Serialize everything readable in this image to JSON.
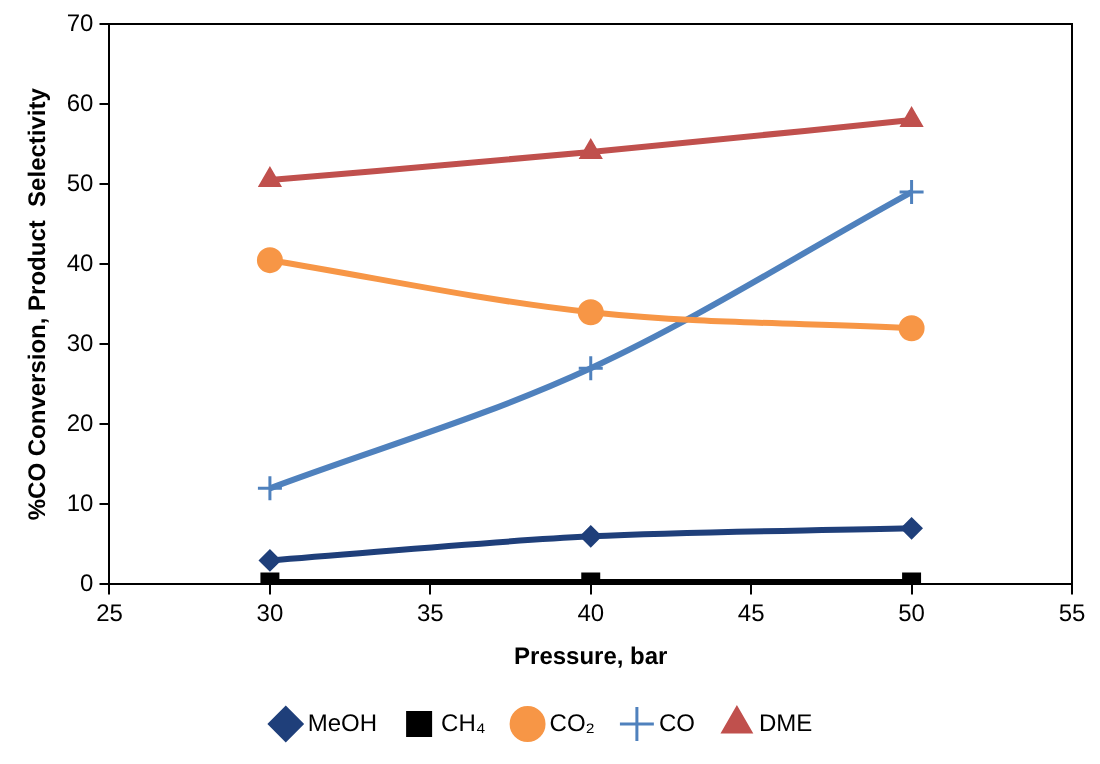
{
  "chart_data": {
    "type": "line",
    "xlabel": "Pressure, bar",
    "ylabel": "%CO Conversion, Product  Selectivity",
    "x": [
      30,
      40,
      50
    ],
    "xlim": [
      25,
      55
    ],
    "xticks": [
      25,
      30,
      35,
      40,
      45,
      50,
      55
    ],
    "ylim": [
      0,
      70
    ],
    "yticks": [
      0,
      10,
      20,
      30,
      40,
      50,
      60,
      70
    ],
    "grid": false,
    "legend": "bottom",
    "series": [
      {
        "name": "MeOH",
        "color": "#1f3f7a",
        "marker": "diamond",
        "values": [
          3,
          6,
          7
        ]
      },
      {
        "name": "CH₄",
        "color": "#000000",
        "marker": "square",
        "values": [
          0.3,
          0.3,
          0.3
        ]
      },
      {
        "name": "CO₂",
        "color": "#f79646",
        "marker": "circle",
        "values": [
          40.5,
          34,
          32
        ]
      },
      {
        "name": "CO",
        "color": "#4f81bd",
        "marker": "cross",
        "values": [
          12,
          27,
          49
        ]
      },
      {
        "name": "DME",
        "color": "#c0504d",
        "marker": "triangle",
        "values": [
          50.5,
          54,
          58
        ]
      }
    ]
  }
}
